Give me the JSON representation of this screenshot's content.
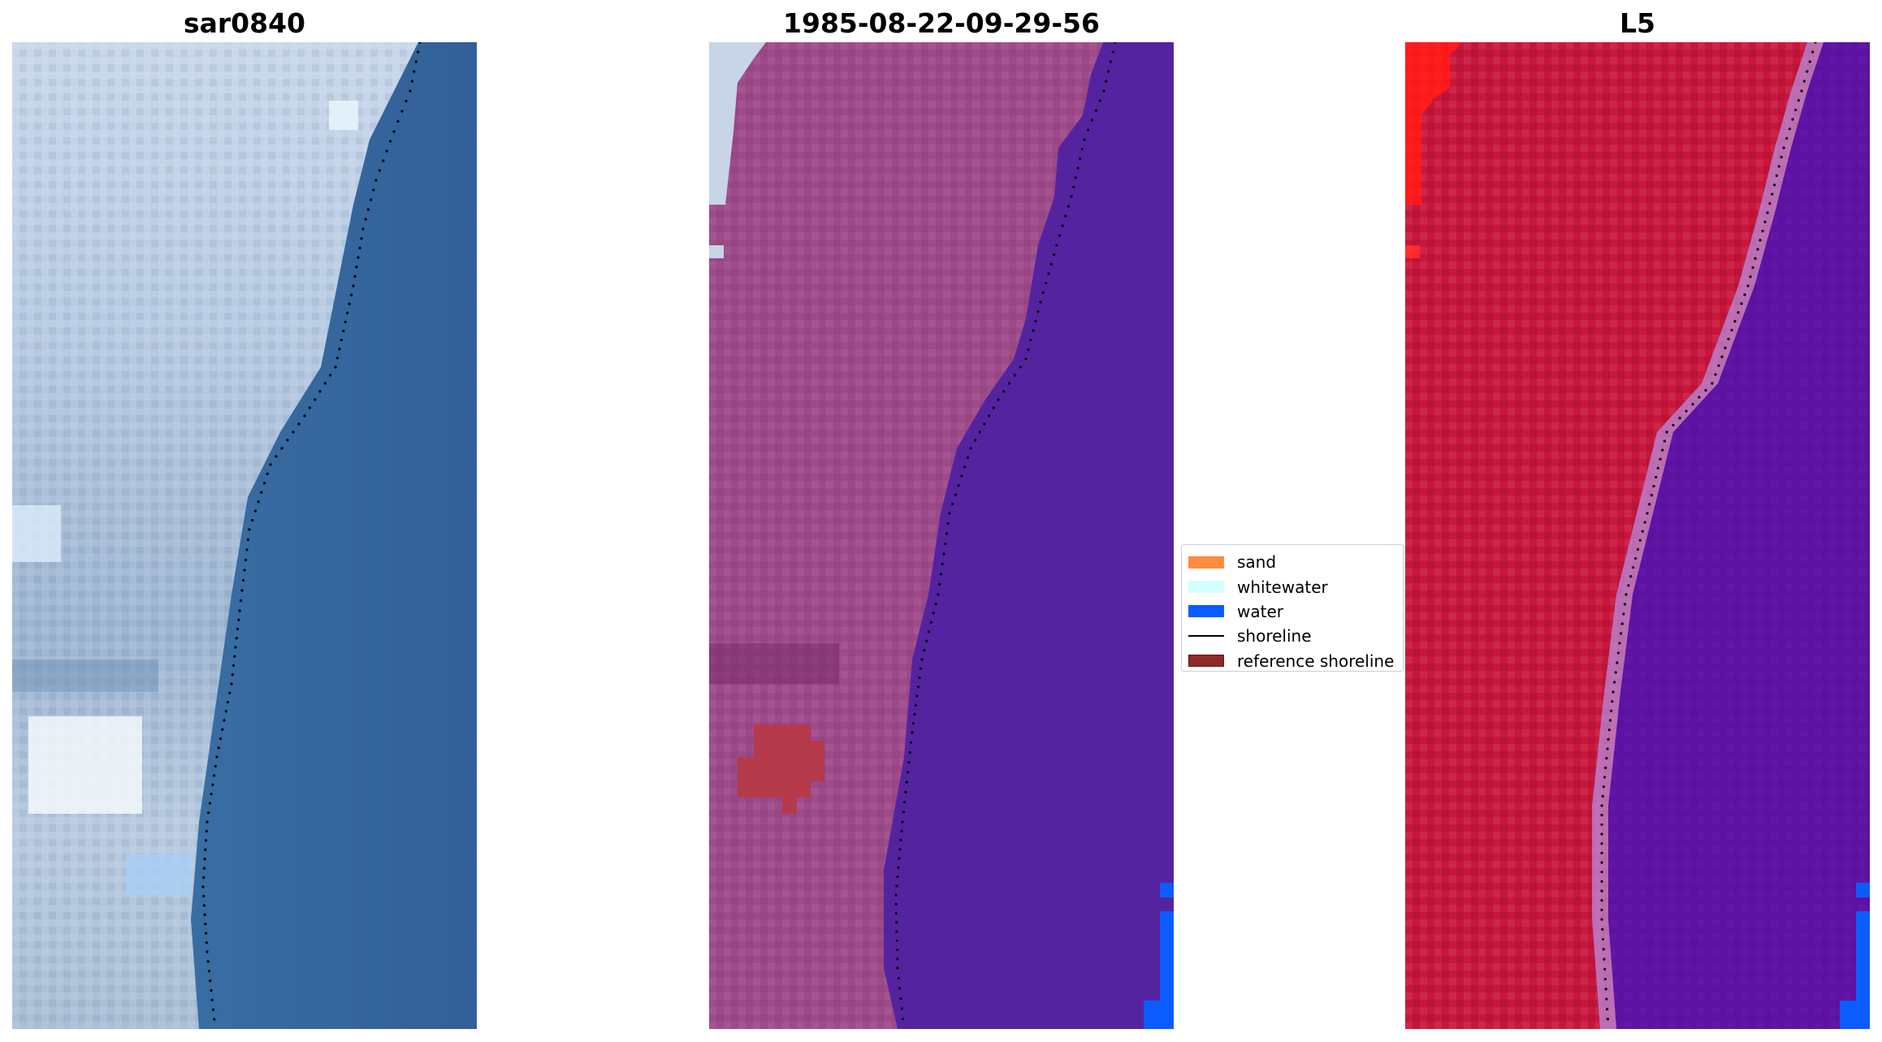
{
  "panels": [
    {
      "title": "sar0840",
      "scheme": "rgb"
    },
    {
      "title": "1985-08-22-09-29-56",
      "scheme": "classified"
    },
    {
      "title": "L5",
      "scheme": "mndwi"
    }
  ],
  "legend": {
    "items": [
      {
        "label": "sand",
        "kind": "patch",
        "color": "#ff8c3f"
      },
      {
        "label": "whitewater",
        "kind": "patch",
        "color": "#d4ffff"
      },
      {
        "label": "water",
        "kind": "patch",
        "color": "#0a5cff"
      },
      {
        "label": "shoreline",
        "kind": "line",
        "color": "#000000"
      },
      {
        "label": "reference shoreline",
        "kind": "patch",
        "color": "#8f2a2a",
        "edge": "#5a1a1a"
      }
    ]
  },
  "colors": {
    "sea_blue": "#3a6fa3",
    "land_rgb_light": "#c8d8ea",
    "land_classified": "#9e4a8a",
    "water_classified": "#5424a0",
    "mndwi_land": "#c8163c",
    "mndwi_water": "#5e12a3",
    "reference_patch": "#b53a4b",
    "shoreline_dots": "#000000"
  }
}
